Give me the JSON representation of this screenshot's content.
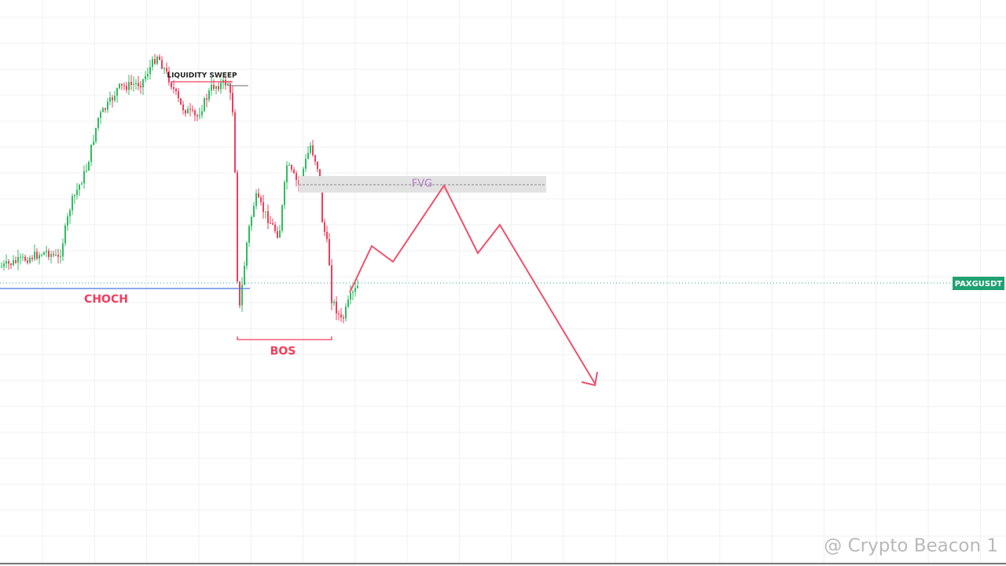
{
  "symbol": "PAXGUSDT",
  "annotations": {
    "liquidity_sweep": "LIQUIDITY SWEEP",
    "fvg": "FVG",
    "choch": "CHOCH",
    "bos": "BOS"
  },
  "watermark": "@ Crypto Beacon 1"
}
